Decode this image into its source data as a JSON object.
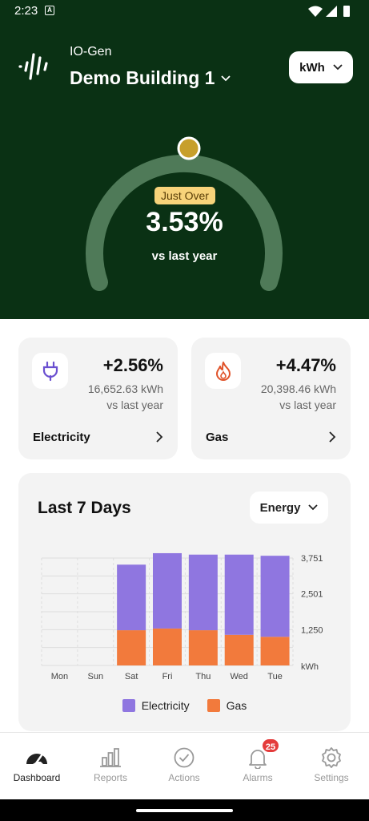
{
  "status_bar": {
    "time": "2:23",
    "notification_letter": "A"
  },
  "header": {
    "org_name": "IO-Gen",
    "building_name": "Demo Building 1",
    "unit_label": "kWh"
  },
  "gauge": {
    "badge": "Just Over",
    "value": "3.53%",
    "caption": "vs last year",
    "level": 0.51
  },
  "cards": [
    {
      "icon": "plug-icon",
      "percent": "+2.56%",
      "amount": "16,652.63 kWh",
      "vs": "vs last year",
      "label": "Electricity"
    },
    {
      "icon": "flame-icon",
      "percent": "+4.47%",
      "amount": "20,398.46 kWh",
      "vs": "vs last year",
      "label": "Gas"
    }
  ],
  "chart_section": {
    "title": "Last 7 Days",
    "select_label": "Energy"
  },
  "chart_data": {
    "type": "bar",
    "stacked": true,
    "categories": [
      "Mon",
      "Sun",
      "Sat",
      "Fri",
      "Thu",
      "Wed",
      "Tue"
    ],
    "series": [
      {
        "name": "Gas",
        "color": "#f27a3c",
        "values": [
          0,
          0,
          1230,
          1290,
          1230,
          1070,
          1000
        ]
      },
      {
        "name": "Electricity",
        "color": "#8f76e0",
        "values": [
          0,
          0,
          2290,
          2630,
          2640,
          2800,
          2830
        ]
      }
    ],
    "ytick_labels": [
      "3,751",
      "2,501",
      "1,250"
    ],
    "ylabel": "kWh",
    "ylim": [
      0,
      3751
    ],
    "grid": true
  },
  "legend": [
    {
      "label": "Electricity",
      "color": "#8f76e0"
    },
    {
      "label": "Gas",
      "color": "#f27a3c"
    }
  ],
  "nav": [
    {
      "label": "Dashboard",
      "icon": "dashboard-gauge-icon",
      "active": true
    },
    {
      "label": "Reports",
      "icon": "bar-chart-icon",
      "active": false
    },
    {
      "label": "Actions",
      "icon": "check-circle-icon",
      "active": false
    },
    {
      "label": "Alarms",
      "icon": "bell-icon",
      "active": false,
      "badge": "25"
    },
    {
      "label": "Settings",
      "icon": "gear-icon",
      "active": false
    }
  ],
  "colors": {
    "hero_bg": "#0a3114",
    "gauge_track": "#4f7a58",
    "gauge_knob": "#c79f2c",
    "badge_bg": "#f7d37a"
  }
}
